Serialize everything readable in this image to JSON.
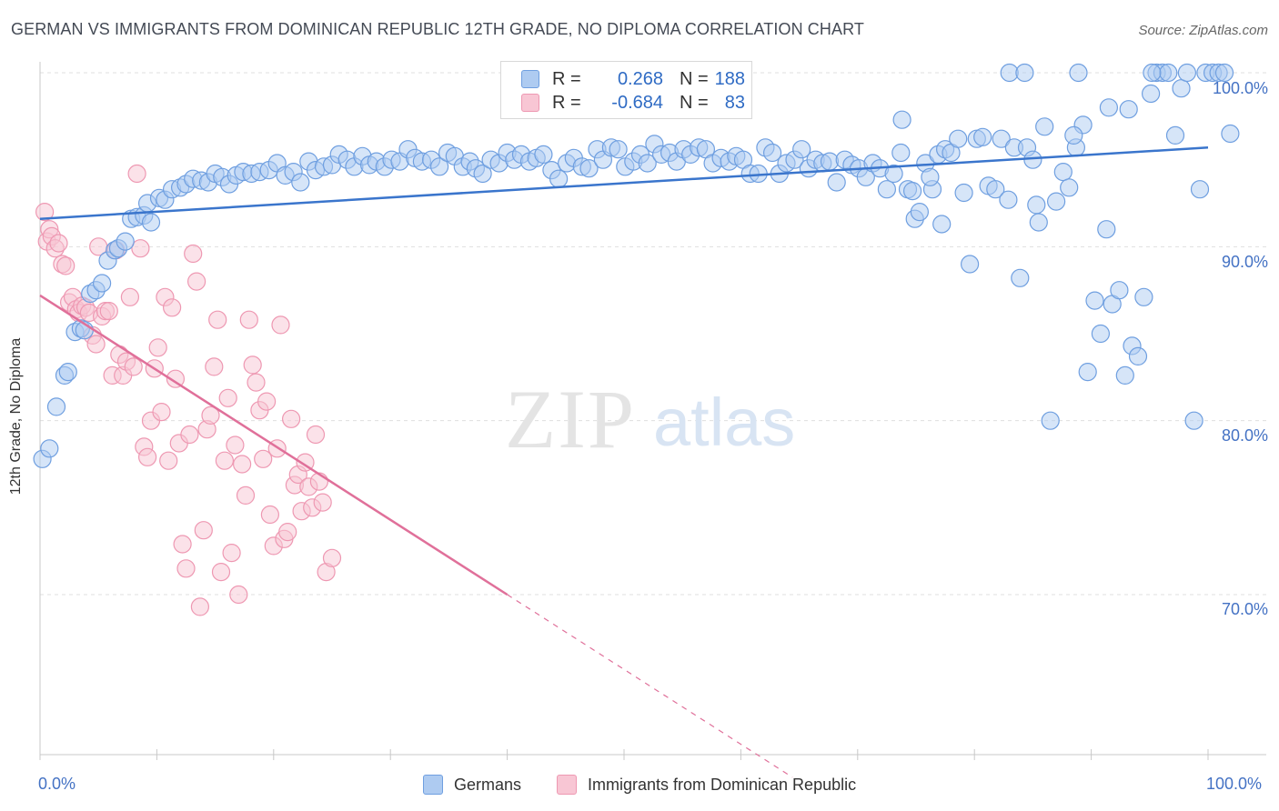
{
  "title": "GERMAN VS IMMIGRANTS FROM DOMINICAN REPUBLIC 12TH GRADE, NO DIPLOMA CORRELATION CHART",
  "source": "Source: ZipAtlas.com",
  "watermark": "ZIPatlas",
  "colors": {
    "blue_fill": "#aecbf1",
    "blue_stroke": "#6f9fe0",
    "blue_line": "#3a75cc",
    "pink_fill": "#f8c6d4",
    "pink_stroke": "#ee98b2",
    "pink_line": "#e0709a",
    "tick_text": "#4472c4",
    "grid": "#dfdfdf"
  },
  "legend": {
    "row1": {
      "r_label": "R =",
      "r_value": "0.268",
      "n_label": "N =",
      "n_value": "188"
    },
    "row2": {
      "r_label": "R =",
      "r_value": "-0.684",
      "n_label": "N =",
      "n_value": "83"
    }
  },
  "chart_data": {
    "type": "scatter",
    "title": "GERMAN VS IMMIGRANTS FROM DOMINICAN REPUBLIC 12TH GRADE, NO DIPLOMA CORRELATION CHART",
    "xlabel": "",
    "ylabel": "12th Grade, No Diploma",
    "x_range": [
      0,
      100
    ],
    "y_range": [
      59.5,
      102
    ],
    "x_ticks": [
      "0.0%",
      "100.0%"
    ],
    "y_ticks": [
      {
        "value": 100,
        "label": "100.0%"
      },
      {
        "value": 90,
        "label": "90.0%"
      },
      {
        "value": 80,
        "label": "80.0%"
      },
      {
        "value": 70,
        "label": "70.0%"
      }
    ],
    "grid": true,
    "legend_placement": "top-center",
    "series": [
      {
        "name": "Germans",
        "r": 0.268,
        "n": 188,
        "trend": {
          "x": [
            0,
            100
          ],
          "y": [
            91.6,
            95.7
          ]
        },
        "points": [
          [
            0.2,
            77.8
          ],
          [
            0.8,
            78.4
          ],
          [
            1.4,
            80.8
          ],
          [
            2.1,
            82.6
          ],
          [
            2.4,
            82.8
          ],
          [
            3.0,
            85.1
          ],
          [
            3.5,
            85.3
          ],
          [
            3.8,
            85.2
          ],
          [
            4.3,
            87.3
          ],
          [
            4.8,
            87.5
          ],
          [
            5.3,
            87.9
          ],
          [
            5.8,
            89.2
          ],
          [
            6.4,
            89.8
          ],
          [
            6.7,
            89.9
          ],
          [
            7.3,
            90.3
          ],
          [
            7.8,
            91.6
          ],
          [
            8.3,
            91.7
          ],
          [
            8.9,
            91.8
          ],
          [
            9.5,
            91.4
          ],
          [
            9.2,
            92.5
          ],
          [
            10.2,
            92.8
          ],
          [
            10.7,
            92.7
          ],
          [
            11.3,
            93.3
          ],
          [
            12.0,
            93.4
          ],
          [
            12.5,
            93.6
          ],
          [
            13.1,
            93.9
          ],
          [
            13.8,
            93.8
          ],
          [
            14.4,
            93.7
          ],
          [
            15.0,
            94.2
          ],
          [
            15.6,
            94.0
          ],
          [
            16.2,
            93.6
          ],
          [
            16.8,
            94.1
          ],
          [
            17.4,
            94.3
          ],
          [
            18.1,
            94.2
          ],
          [
            18.8,
            94.3
          ],
          [
            19.6,
            94.4
          ],
          [
            20.3,
            94.8
          ],
          [
            21.0,
            94.1
          ],
          [
            21.7,
            94.3
          ],
          [
            22.3,
            93.7
          ],
          [
            23.0,
            94.9
          ],
          [
            23.6,
            94.4
          ],
          [
            24.3,
            94.6
          ],
          [
            25.0,
            94.7
          ],
          [
            25.6,
            95.3
          ],
          [
            26.3,
            95.0
          ],
          [
            26.9,
            94.6
          ],
          [
            27.6,
            95.2
          ],
          [
            28.2,
            94.7
          ],
          [
            28.8,
            94.9
          ],
          [
            29.5,
            94.6
          ],
          [
            30.1,
            95.0
          ],
          [
            30.8,
            94.9
          ],
          [
            31.5,
            95.6
          ],
          [
            32.1,
            95.1
          ],
          [
            32.7,
            94.9
          ],
          [
            33.5,
            95.0
          ],
          [
            34.2,
            94.6
          ],
          [
            34.9,
            95.4
          ],
          [
            35.5,
            95.2
          ],
          [
            36.2,
            94.6
          ],
          [
            36.8,
            94.9
          ],
          [
            37.3,
            94.5
          ],
          [
            37.9,
            94.2
          ],
          [
            38.6,
            95.0
          ],
          [
            39.3,
            94.8
          ],
          [
            40.0,
            95.4
          ],
          [
            40.6,
            95.0
          ],
          [
            41.2,
            95.3
          ],
          [
            41.9,
            94.9
          ],
          [
            42.5,
            95.1
          ],
          [
            43.1,
            95.3
          ],
          [
            43.8,
            94.4
          ],
          [
            44.4,
            93.9
          ],
          [
            45.1,
            94.8
          ],
          [
            45.7,
            95.1
          ],
          [
            46.4,
            94.6
          ],
          [
            47.0,
            94.5
          ],
          [
            47.7,
            95.6
          ],
          [
            48.2,
            95.0
          ],
          [
            48.9,
            95.7
          ],
          [
            49.5,
            95.6
          ],
          [
            50.1,
            94.6
          ],
          [
            50.8,
            94.9
          ],
          [
            51.4,
            95.3
          ],
          [
            52.0,
            94.8
          ],
          [
            52.6,
            95.9
          ],
          [
            53.2,
            95.3
          ],
          [
            53.9,
            95.4
          ],
          [
            54.5,
            94.9
          ],
          [
            55.1,
            95.6
          ],
          [
            55.7,
            95.3
          ],
          [
            56.4,
            95.7
          ],
          [
            57.0,
            95.6
          ],
          [
            57.6,
            94.8
          ],
          [
            58.3,
            95.1
          ],
          [
            59.0,
            94.9
          ],
          [
            59.6,
            95.2
          ],
          [
            60.2,
            95.0
          ],
          [
            60.8,
            94.2
          ],
          [
            61.5,
            94.2
          ],
          [
            62.1,
            95.7
          ],
          [
            62.7,
            95.4
          ],
          [
            63.3,
            94.2
          ],
          [
            63.9,
            94.8
          ],
          [
            64.6,
            95.0
          ],
          [
            65.2,
            95.6
          ],
          [
            65.8,
            94.5
          ],
          [
            66.4,
            95.0
          ],
          [
            67.0,
            94.8
          ],
          [
            67.6,
            94.9
          ],
          [
            68.2,
            93.7
          ],
          [
            68.9,
            95.0
          ],
          [
            69.5,
            94.7
          ],
          [
            70.1,
            94.5
          ],
          [
            70.7,
            94.0
          ],
          [
            71.3,
            94.8
          ],
          [
            71.9,
            94.5
          ],
          [
            72.5,
            93.3
          ],
          [
            73.1,
            94.2
          ],
          [
            73.7,
            95.4
          ],
          [
            74.3,
            93.3
          ],
          [
            74.9,
            91.6
          ],
          [
            75.3,
            92.0
          ],
          [
            75.8,
            94.8
          ],
          [
            76.4,
            93.3
          ],
          [
            76.9,
            95.3
          ],
          [
            77.5,
            95.6
          ],
          [
            78.0,
            95.4
          ],
          [
            78.6,
            96.2
          ],
          [
            79.1,
            93.1
          ],
          [
            79.6,
            89.0
          ],
          [
            80.2,
            96.2
          ],
          [
            80.7,
            96.3
          ],
          [
            81.2,
            93.5
          ],
          [
            81.8,
            93.3
          ],
          [
            82.3,
            96.2
          ],
          [
            82.9,
            92.7
          ],
          [
            83.4,
            95.7
          ],
          [
            83.9,
            88.2
          ],
          [
            84.5,
            95.7
          ],
          [
            85.0,
            95.0
          ],
          [
            85.5,
            91.4
          ],
          [
            86.0,
            96.9
          ],
          [
            86.5,
            80.0
          ],
          [
            87.0,
            92.6
          ],
          [
            87.6,
            94.3
          ],
          [
            88.1,
            93.4
          ],
          [
            88.7,
            95.7
          ],
          [
            89.3,
            97.0
          ],
          [
            89.7,
            82.8
          ],
          [
            90.3,
            86.9
          ],
          [
            90.8,
            85.0
          ],
          [
            91.3,
            91.0
          ],
          [
            91.8,
            86.7
          ],
          [
            92.4,
            87.5
          ],
          [
            92.9,
            82.6
          ],
          [
            93.5,
            84.3
          ],
          [
            94.0,
            83.7
          ],
          [
            94.5,
            87.1
          ],
          [
            95.1,
            98.8
          ],
          [
            95.6,
            100.0
          ],
          [
            96.1,
            100.0
          ],
          [
            96.6,
            100.0
          ],
          [
            97.2,
            96.4
          ],
          [
            97.7,
            99.1
          ],
          [
            98.2,
            100.0
          ],
          [
            98.8,
            80.0
          ],
          [
            99.3,
            93.3
          ],
          [
            99.8,
            100.0
          ],
          [
            100.4,
            100.0
          ],
          [
            100.9,
            100.0
          ],
          [
            101.4,
            100.0
          ],
          [
            101.9,
            96.5
          ],
          [
            74.7,
            93.2
          ],
          [
            77.2,
            91.3
          ],
          [
            85.3,
            92.4
          ],
          [
            88.5,
            96.4
          ],
          [
            76.2,
            94.0
          ],
          [
            93.2,
            97.9
          ],
          [
            73.8,
            97.3
          ],
          [
            83.0,
            100.0
          ],
          [
            84.3,
            100.0
          ],
          [
            88.9,
            100.0
          ],
          [
            91.5,
            98.0
          ],
          [
            95.2,
            100.0
          ]
        ]
      },
      {
        "name": "Immigrants from Dominican Republic",
        "r": -0.684,
        "n": 83,
        "trend": {
          "x": [
            0,
            40
          ],
          "y": [
            87.2,
            70.0
          ]
        },
        "points": [
          [
            0.4,
            92.0
          ],
          [
            0.6,
            90.3
          ],
          [
            0.8,
            91.0
          ],
          [
            1.0,
            90.6
          ],
          [
            1.3,
            89.9
          ],
          [
            1.6,
            90.2
          ],
          [
            1.9,
            89.0
          ],
          [
            2.2,
            88.9
          ],
          [
            2.5,
            86.8
          ],
          [
            2.8,
            87.1
          ],
          [
            3.1,
            86.4
          ],
          [
            3.3,
            86.2
          ],
          [
            3.6,
            86.6
          ],
          [
            3.9,
            86.5
          ],
          [
            4.2,
            86.2
          ],
          [
            4.5,
            84.9
          ],
          [
            4.8,
            84.4
          ],
          [
            5.0,
            90.0
          ],
          [
            5.3,
            86.0
          ],
          [
            5.6,
            86.3
          ],
          [
            5.9,
            86.3
          ],
          [
            6.2,
            82.6
          ],
          [
            6.5,
            89.8
          ],
          [
            6.8,
            83.8
          ],
          [
            7.1,
            82.6
          ],
          [
            7.4,
            83.4
          ],
          [
            7.7,
            87.1
          ],
          [
            8.0,
            83.1
          ],
          [
            8.3,
            94.2
          ],
          [
            8.6,
            89.9
          ],
          [
            8.9,
            78.5
          ],
          [
            9.2,
            77.9
          ],
          [
            9.5,
            80.0
          ],
          [
            9.8,
            83.0
          ],
          [
            10.1,
            84.2
          ],
          [
            10.4,
            80.5
          ],
          [
            10.7,
            87.1
          ],
          [
            11.0,
            77.7
          ],
          [
            11.3,
            86.5
          ],
          [
            11.6,
            82.4
          ],
          [
            11.9,
            78.7
          ],
          [
            12.2,
            72.9
          ],
          [
            12.5,
            71.5
          ],
          [
            12.8,
            79.2
          ],
          [
            13.1,
            89.6
          ],
          [
            13.4,
            88.0
          ],
          [
            13.7,
            69.3
          ],
          [
            14.0,
            73.7
          ],
          [
            14.3,
            79.5
          ],
          [
            14.6,
            80.3
          ],
          [
            14.9,
            83.1
          ],
          [
            15.2,
            85.8
          ],
          [
            15.5,
            71.3
          ],
          [
            15.8,
            77.7
          ],
          [
            16.1,
            81.3
          ],
          [
            16.4,
            72.4
          ],
          [
            16.7,
            78.6
          ],
          [
            17.0,
            70.0
          ],
          [
            17.3,
            77.5
          ],
          [
            17.6,
            75.7
          ],
          [
            17.9,
            85.8
          ],
          [
            18.2,
            83.2
          ],
          [
            18.5,
            82.2
          ],
          [
            18.8,
            80.6
          ],
          [
            19.1,
            77.8
          ],
          [
            19.4,
            81.1
          ],
          [
            19.7,
            74.6
          ],
          [
            20.0,
            72.8
          ],
          [
            20.3,
            78.4
          ],
          [
            20.6,
            85.5
          ],
          [
            20.9,
            73.2
          ],
          [
            21.2,
            73.6
          ],
          [
            21.5,
            80.1
          ],
          [
            21.8,
            76.3
          ],
          [
            22.1,
            76.9
          ],
          [
            22.4,
            74.8
          ],
          [
            22.7,
            77.6
          ],
          [
            23.0,
            76.2
          ],
          [
            23.3,
            75.0
          ],
          [
            23.6,
            79.2
          ],
          [
            23.9,
            76.5
          ],
          [
            24.2,
            75.3
          ],
          [
            24.5,
            71.3
          ],
          [
            25.0,
            72.1
          ]
        ]
      }
    ]
  },
  "bottom_legend": {
    "series1": "Germans",
    "series2": "Immigrants from Dominican Republic"
  },
  "x_tick_left": "0.0%",
  "x_tick_right": "100.0%"
}
